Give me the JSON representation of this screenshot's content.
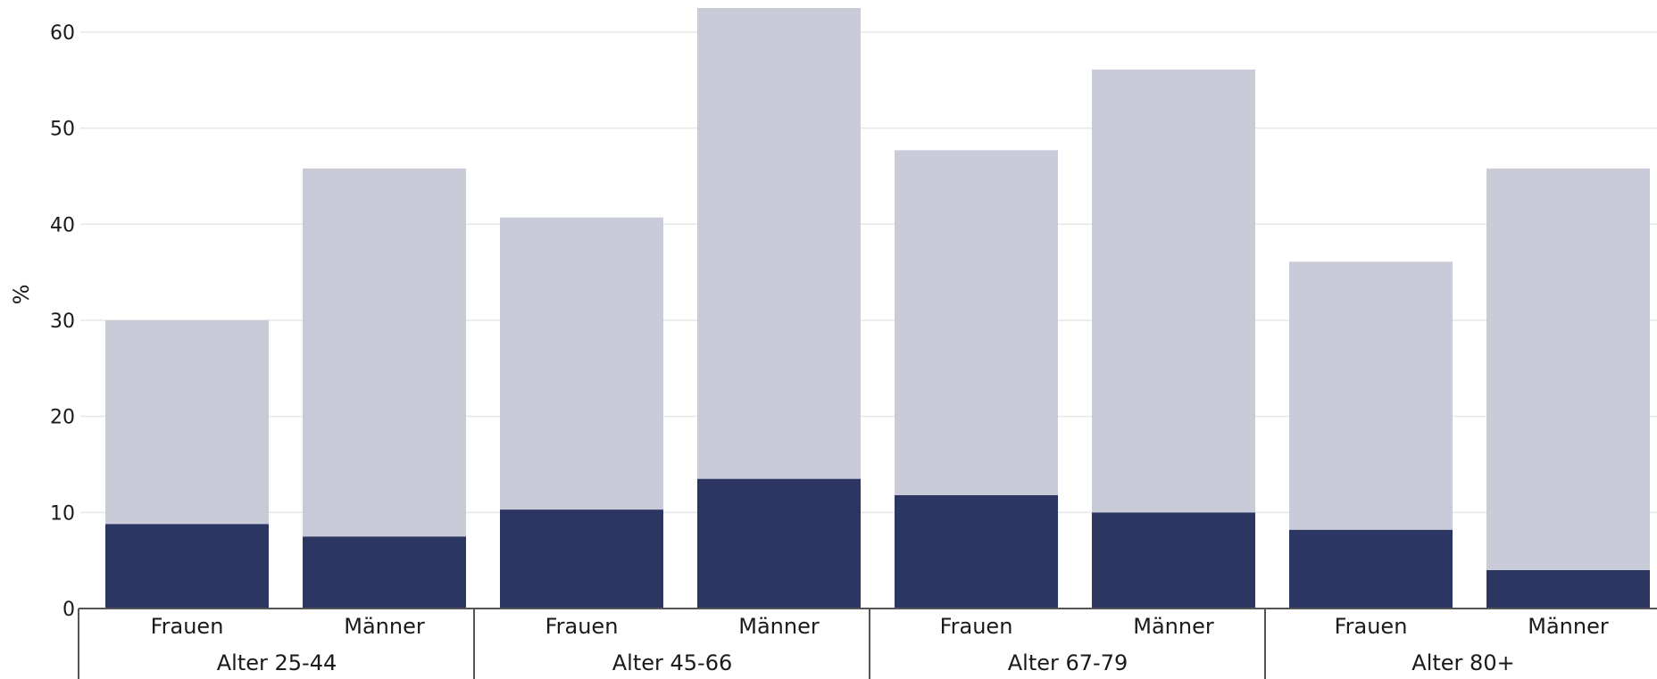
{
  "chart_data": {
    "type": "bar",
    "stacked": true,
    "ylabel": "%",
    "ylim": [
      0,
      62.5
    ],
    "yticks": [
      0,
      10,
      20,
      30,
      40,
      50,
      60
    ],
    "grid": true,
    "legend": "none",
    "groups": [
      {
        "label": "Alter 25-44",
        "categories": [
          "Frauen",
          "Männer"
        ]
      },
      {
        "label": "Alter 45-66",
        "categories": [
          "Frauen",
          "Männer"
        ]
      },
      {
        "label": "Alter 67-79",
        "categories": [
          "Frauen",
          "Männer"
        ]
      },
      {
        "label": "Alter 80+",
        "categories": [
          "Frauen",
          "Männer"
        ]
      }
    ],
    "series": [
      {
        "color": "#2b3663",
        "values": [
          8.8,
          7.5,
          10.3,
          13.5,
          11.8,
          10.0,
          8.2,
          4.0
        ]
      },
      {
        "color": "#c9cbd8",
        "values": [
          21.2,
          38.3,
          30.4,
          49.0,
          35.9,
          46.1,
          27.9,
          41.8
        ]
      }
    ],
    "totals": [
      30.0,
      45.8,
      40.7,
      62.5,
      47.7,
      56.1,
      36.1,
      45.8
    ]
  },
  "colors": {
    "grid": "#e6e6e6",
    "axis": "#555555"
  }
}
